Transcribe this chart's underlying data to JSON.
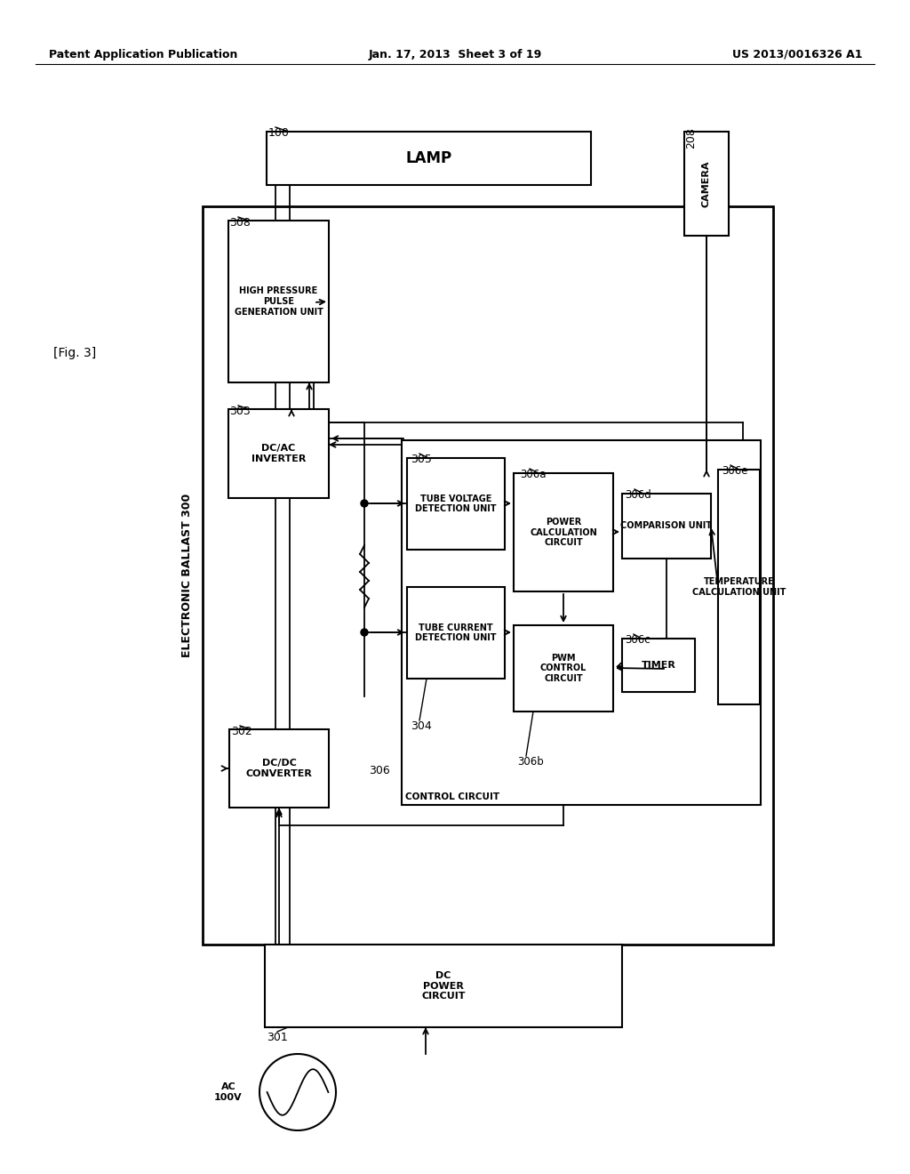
{
  "page_header_left": "Patent Application Publication",
  "page_header_center": "Jan. 17, 2013  Sheet 3 of 19",
  "page_header_right": "US 2013/0016326 A1",
  "fig_label": "[Fig. 3]",
  "background_color": "#ffffff"
}
